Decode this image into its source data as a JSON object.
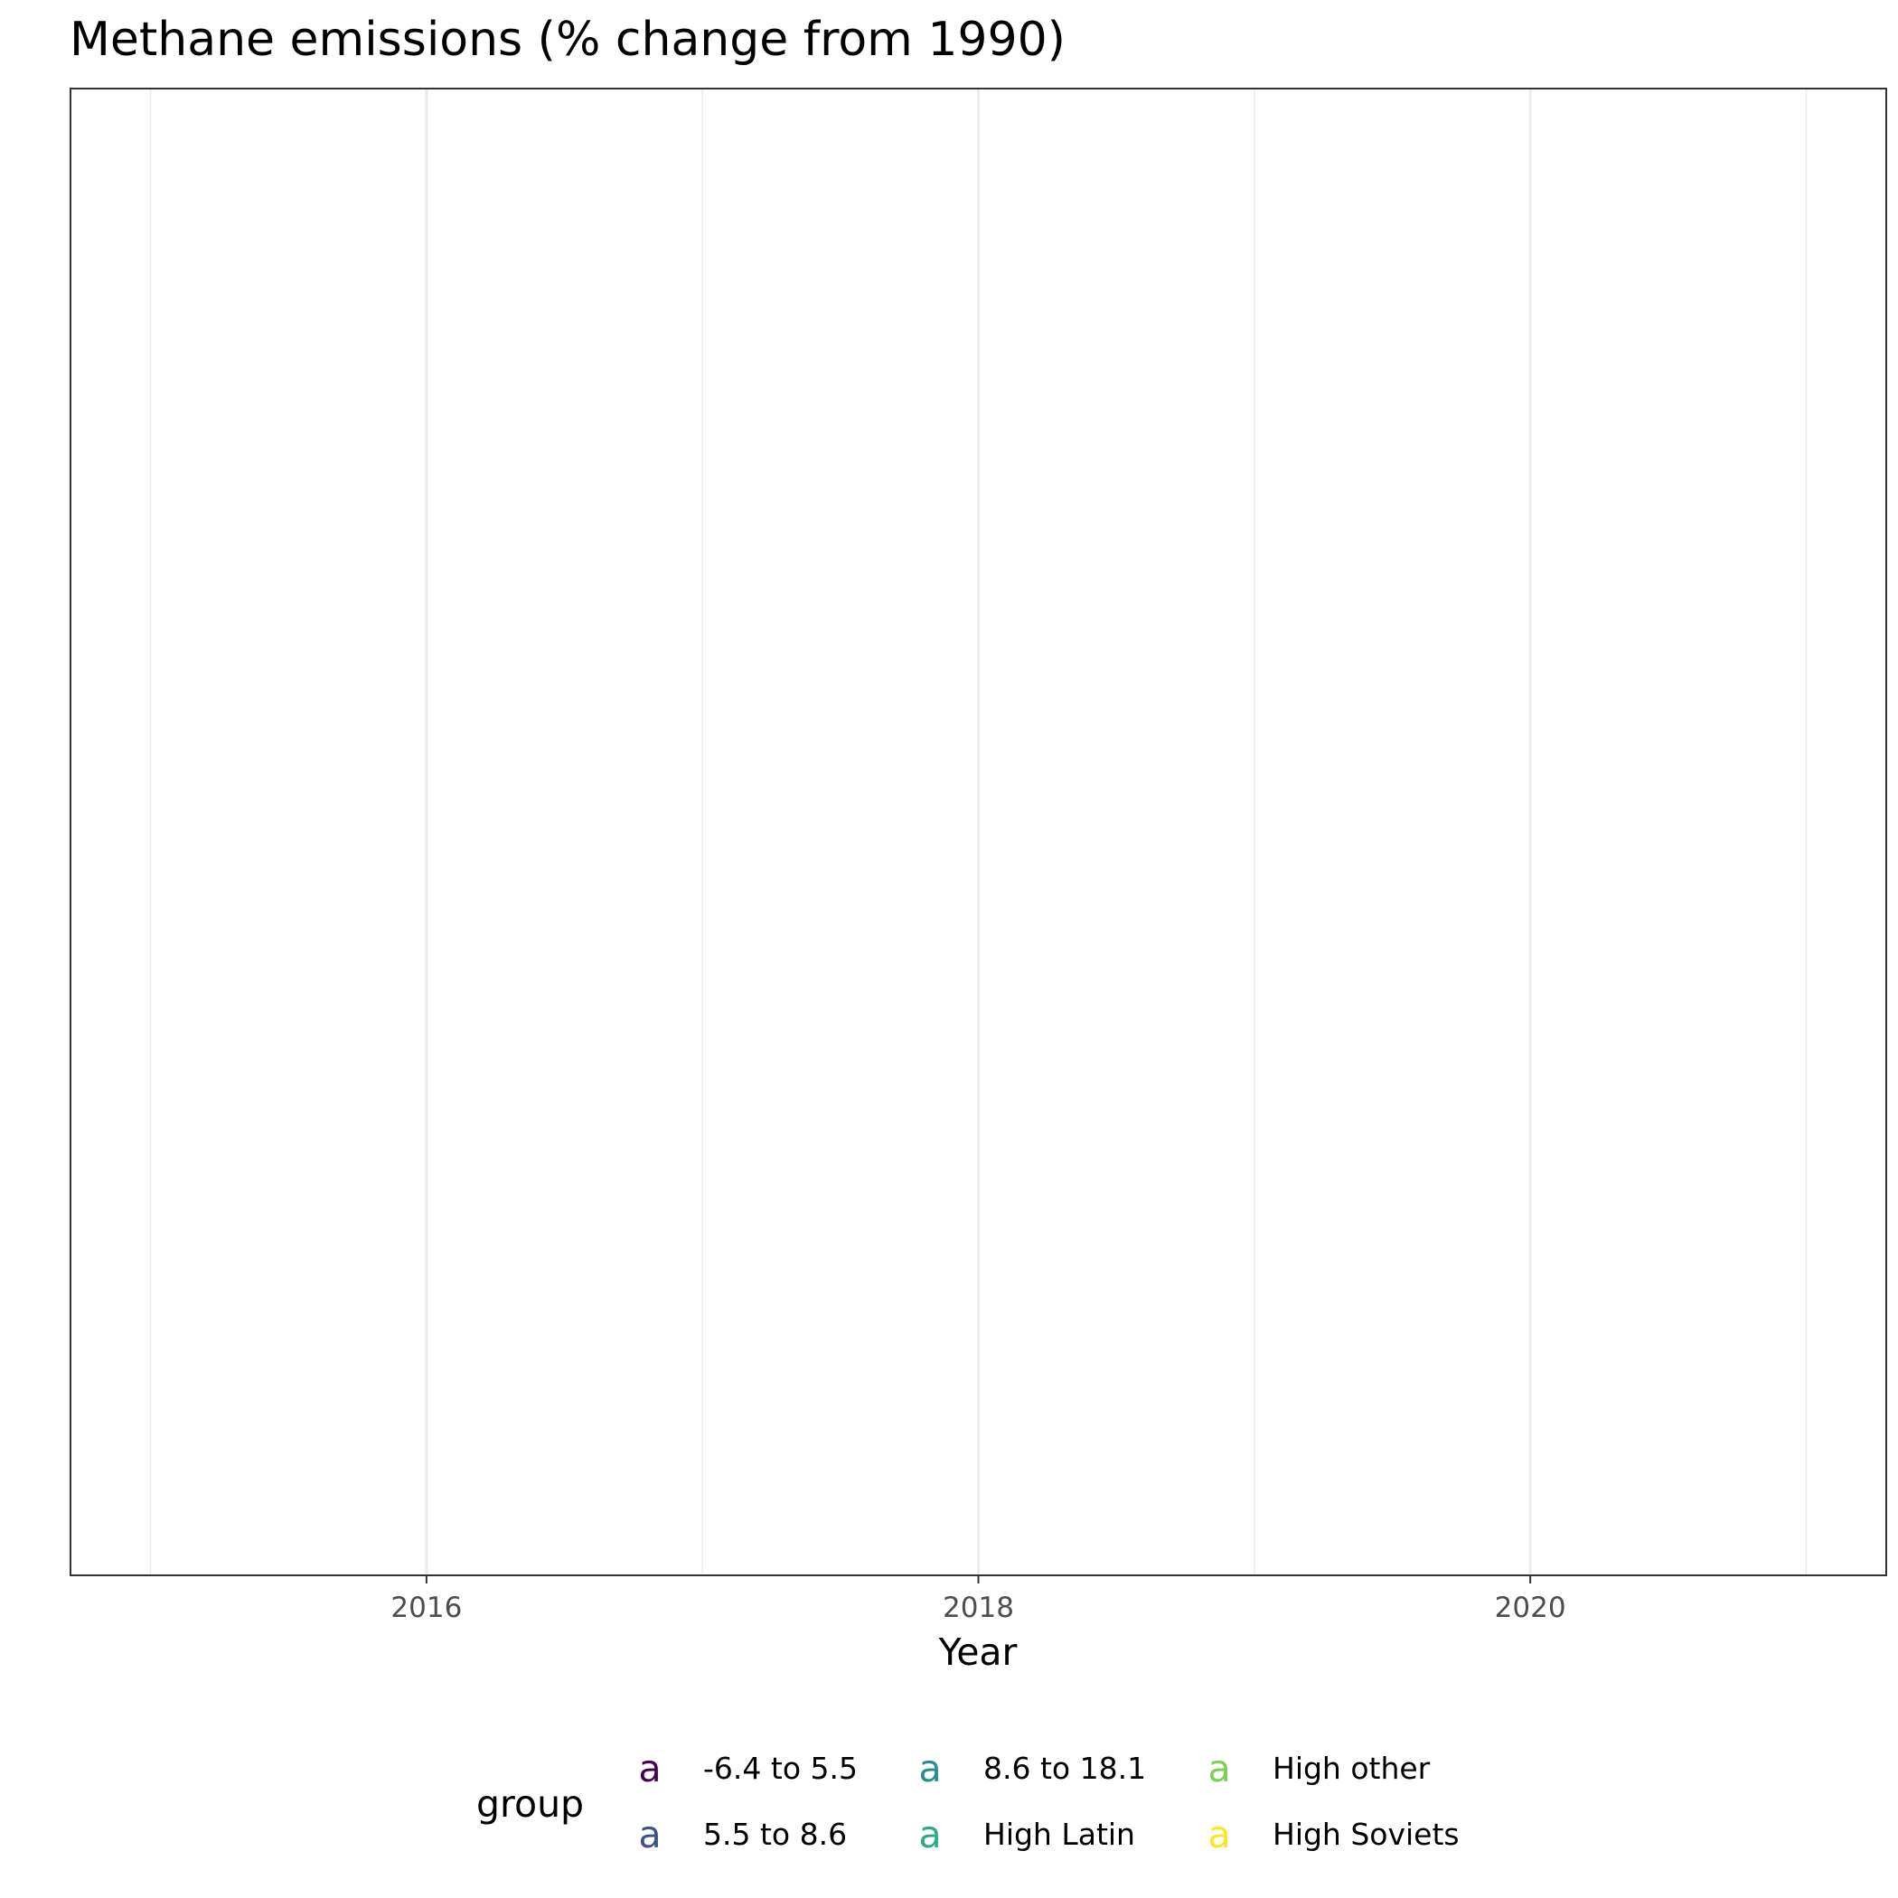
{
  "chart_data": {
    "type": "line",
    "title": "Methane emissions (% change from 1990)",
    "xlabel": "Year",
    "ylabel": "",
    "xlim": [
      2014.71,
      2021.29
    ],
    "x_major_ticks": [
      2016,
      2018,
      2020
    ],
    "x_minor_ticks": [
      2015,
      2017,
      2019,
      2021
    ],
    "x_tick_labels": [
      "2016",
      "2018",
      "2020"
    ],
    "grid": "vertical",
    "legend": {
      "title": "group",
      "position": "bottom",
      "key_glyph": "a",
      "entries": [
        {
          "label": "-6.4 to 5.5",
          "color": "#440154"
        },
        {
          "label": "5.5 to 8.6",
          "color": "#3B528B"
        },
        {
          "label": "8.6 to 18.1",
          "color": "#21908C"
        },
        {
          "label": "High Latin",
          "color": "#27AD81"
        },
        {
          "label": "High other",
          "color": "#7AD151"
        },
        {
          "label": "High Soviets",
          "color": "#FDE725"
        }
      ]
    },
    "series": []
  }
}
